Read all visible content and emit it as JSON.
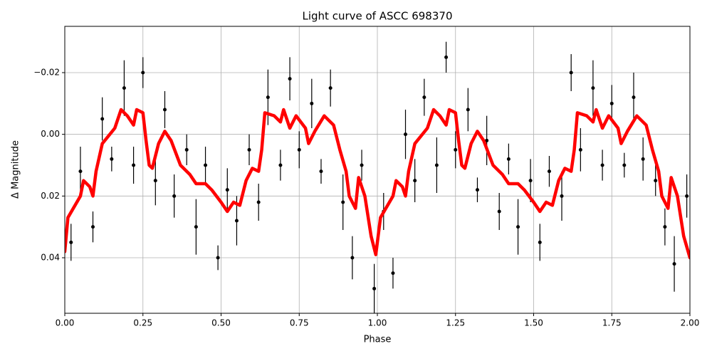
{
  "chart_data": {
    "type": "scatter",
    "title": "Light curve of ASCC 698370",
    "xlabel": "Phase",
    "ylabel": "Δ Magnitude",
    "xlim": [
      0,
      2
    ],
    "ylim": [
      -0.035,
      0.058
    ],
    "invert_y": true,
    "grid": true,
    "xticks": [
      {
        "value": 0,
        "label": "0.00"
      },
      {
        "value": 0.25,
        "label": "0.25"
      },
      {
        "value": 0.5,
        "label": "0.50"
      },
      {
        "value": 0.75,
        "label": "0.75"
      },
      {
        "value": 1,
        "label": "1.00"
      },
      {
        "value": 1.25,
        "label": "1.25"
      },
      {
        "value": 1.5,
        "label": "1.50"
      },
      {
        "value": 1.75,
        "label": "1.75"
      },
      {
        "value": 2,
        "label": "2.00"
      }
    ],
    "yticks": [
      {
        "value": -0.02,
        "label": "−0.02"
      },
      {
        "value": 0,
        "label": "0.00"
      },
      {
        "value": 0.02,
        "label": "0.02"
      },
      {
        "value": 0.04,
        "label": "0.04"
      }
    ],
    "series": [
      {
        "type": "errorbar",
        "color": "#000000",
        "x": [
          0.02,
          0.05,
          0.09,
          0.12,
          0.15,
          0.19,
          0.22,
          0.25,
          0.29,
          0.32,
          0.35,
          0.39,
          0.42,
          0.45,
          0.49,
          0.52,
          0.55,
          0.59,
          0.62,
          0.65,
          0.69,
          0.72,
          0.75,
          0.79,
          0.82,
          0.85,
          0.89,
          0.92,
          0.95,
          0.99,
          1.02,
          1.05,
          1.09,
          1.12,
          1.15,
          1.19,
          1.22,
          1.25,
          1.29,
          1.32,
          1.35,
          1.39,
          1.42,
          1.45,
          1.49,
          1.52,
          1.55,
          1.59,
          1.62,
          1.65,
          1.69,
          1.72,
          1.75,
          1.79,
          1.82,
          1.85,
          1.89,
          1.92,
          1.95,
          1.99
        ],
        "y": [
          0.035,
          0.012,
          0.03,
          -0.005,
          0.008,
          -0.015,
          0.01,
          -0.02,
          0.015,
          -0.008,
          0.02,
          0.005,
          0.03,
          0.01,
          0.04,
          0.018,
          0.028,
          0.005,
          0.022,
          -0.012,
          0.01,
          -0.018,
          0.005,
          -0.01,
          0.012,
          -0.015,
          0.022,
          0.04,
          0.01,
          0.05,
          0.025,
          0.045,
          0.0,
          0.015,
          -0.012,
          0.01,
          -0.025,
          0.005,
          -0.008,
          0.018,
          0.002,
          0.025,
          0.008,
          0.03,
          0.015,
          0.035,
          0.012,
          0.02,
          -0.02,
          0.005,
          -0.015,
          0.01,
          -0.01,
          0.01,
          -0.012,
          0.008,
          0.015,
          0.03,
          0.042,
          0.02
        ],
        "yerr": [
          0.006,
          0.008,
          0.005,
          0.007,
          0.004,
          0.009,
          0.006,
          0.005,
          0.008,
          0.006,
          0.007,
          0.005,
          0.009,
          0.006,
          0.004,
          0.007,
          0.008,
          0.005,
          0.006,
          0.009,
          0.005,
          0.007,
          0.006,
          0.008,
          0.004,
          0.006,
          0.009,
          0.007,
          0.005,
          0.008,
          0.006,
          0.005,
          0.008,
          0.007,
          0.006,
          0.009,
          0.005,
          0.006,
          0.007,
          0.004,
          0.008,
          0.006,
          0.005,
          0.009,
          0.007,
          0.006,
          0.005,
          0.008,
          0.006,
          0.007,
          0.009,
          0.005,
          0.006,
          0.004,
          0.008,
          0.007,
          0.005,
          0.006,
          0.009,
          0.007
        ]
      },
      {
        "type": "line",
        "color": "#ff0000",
        "x": [
          0,
          0.01,
          0.05,
          0.06,
          0.08,
          0.09,
          0.1,
          0.12,
          0.16,
          0.18,
          0.2,
          0.22,
          0.23,
          0.25,
          0.26,
          0.27,
          0.28,
          0.3,
          0.32,
          0.34,
          0.37,
          0.4,
          0.42,
          0.45,
          0.47,
          0.5,
          0.52,
          0.54,
          0.56,
          0.58,
          0.6,
          0.62,
          0.63,
          0.64,
          0.67,
          0.69,
          0.7,
          0.72,
          0.74,
          0.77,
          0.78,
          0.8,
          0.83,
          0.86,
          0.88,
          0.9,
          0.91,
          0.93,
          0.94,
          0.96,
          0.98,
          0.995,
          1.0,
          1.01,
          1.05,
          1.06,
          1.08,
          1.09,
          1.1,
          1.12,
          1.16,
          1.18,
          1.2,
          1.22,
          1.23,
          1.25,
          1.26,
          1.27,
          1.28,
          1.3,
          1.32,
          1.34,
          1.37,
          1.4,
          1.42,
          1.45,
          1.47,
          1.5,
          1.52,
          1.54,
          1.56,
          1.58,
          1.6,
          1.62,
          1.63,
          1.64,
          1.67,
          1.69,
          1.7,
          1.72,
          1.74,
          1.77,
          1.78,
          1.8,
          1.83,
          1.86,
          1.88,
          1.9,
          1.91,
          1.93,
          1.94,
          1.96,
          1.98,
          2.0
        ],
        "y": [
          0.038,
          0.027,
          0.02,
          0.015,
          0.017,
          0.02,
          0.012,
          0.003,
          -0.002,
          -0.008,
          -0.006,
          -0.003,
          -0.008,
          -0.007,
          0.002,
          0.01,
          0.011,
          0.003,
          -0.001,
          0.002,
          0.01,
          0.013,
          0.016,
          0.016,
          0.018,
          0.022,
          0.025,
          0.022,
          0.023,
          0.015,
          0.011,
          0.012,
          0.005,
          -0.007,
          -0.006,
          -0.004,
          -0.008,
          -0.002,
          -0.006,
          -0.002,
          0.003,
          -0.001,
          -0.006,
          -0.003,
          0.005,
          0.012,
          0.02,
          0.024,
          0.014,
          0.02,
          0.033,
          0.039,
          0.035,
          0.027,
          0.02,
          0.015,
          0.017,
          0.02,
          0.012,
          0.003,
          -0.002,
          -0.008,
          -0.006,
          -0.003,
          -0.008,
          -0.007,
          0.002,
          0.01,
          0.011,
          0.003,
          -0.001,
          0.002,
          0.01,
          0.013,
          0.016,
          0.016,
          0.018,
          0.022,
          0.025,
          0.022,
          0.023,
          0.015,
          0.011,
          0.012,
          0.005,
          -0.007,
          -0.006,
          -0.004,
          -0.008,
          -0.002,
          -0.006,
          -0.002,
          0.003,
          -0.001,
          -0.006,
          -0.003,
          0.005,
          0.012,
          0.02,
          0.024,
          0.014,
          0.02,
          0.033,
          0.04
        ]
      }
    ]
  }
}
